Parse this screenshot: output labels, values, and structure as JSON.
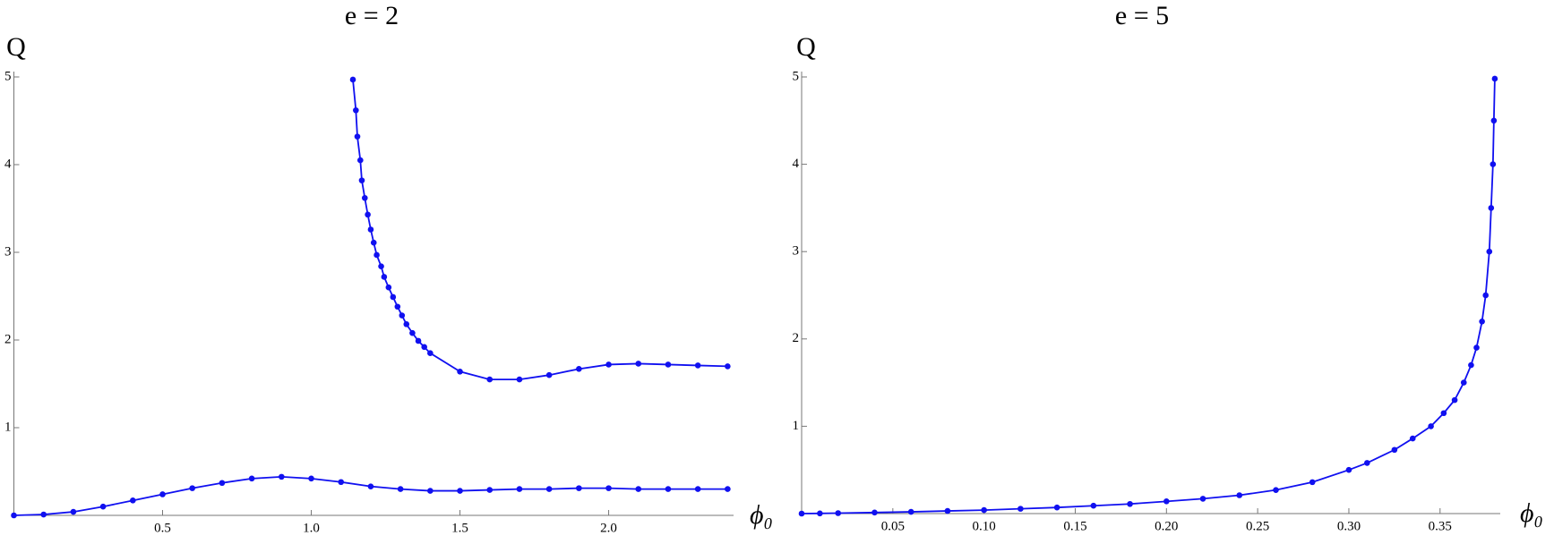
{
  "chart_data": [
    {
      "type": "line",
      "title": "e = 2",
      "ylabel": "Q",
      "xlabel": "ϕ₀",
      "xlim": [
        0,
        2.42
      ],
      "ylim": [
        0,
        5
      ],
      "xticks": [
        0.5,
        {
          "value": 1.0,
          "label": "1.0"
        },
        1.5,
        {
          "value": 2.0,
          "label": "2.0"
        }
      ],
      "yticks": [
        1,
        2,
        3,
        4,
        5
      ],
      "series": [
        {
          "color": "#1010f0",
          "x": [
            0,
            0.1,
            0.2,
            0.3,
            0.4,
            0.5,
            0.6,
            0.7,
            0.8,
            0.9,
            1.0,
            1.1,
            1.2,
            1.3,
            1.4,
            1.5,
            1.6,
            1.7,
            1.8,
            1.9,
            2.0,
            2.1,
            2.2,
            2.3,
            2.4
          ],
          "values": [
            0,
            0.01,
            0.04,
            0.1,
            0.17,
            0.24,
            0.31,
            0.37,
            0.42,
            0.44,
            0.42,
            0.38,
            0.33,
            0.3,
            0.28,
            0.28,
            0.29,
            0.3,
            0.3,
            0.31,
            0.31,
            0.3,
            0.3,
            0.3,
            0.3
          ]
        },
        {
          "color": "#1010f0",
          "x": [
            1.14,
            1.15,
            1.155,
            1.165,
            1.17,
            1.18,
            1.19,
            1.2,
            1.21,
            1.22,
            1.235,
            1.245,
            1.26,
            1.275,
            1.29,
            1.305,
            1.32,
            1.34,
            1.36,
            1.38,
            1.4,
            1.5,
            1.6,
            1.7,
            1.8,
            1.9,
            2.0,
            2.1,
            2.2,
            2.3,
            2.4
          ],
          "values": [
            4.97,
            4.62,
            4.32,
            4.05,
            3.82,
            3.62,
            3.43,
            3.26,
            3.11,
            2.97,
            2.84,
            2.72,
            2.6,
            2.49,
            2.38,
            2.28,
            2.18,
            2.08,
            1.99,
            1.92,
            1.85,
            1.64,
            1.55,
            1.55,
            1.6,
            1.67,
            1.72,
            1.73,
            1.72,
            1.71,
            1.7
          ]
        }
      ]
    },
    {
      "type": "line",
      "title": "e = 5",
      "ylabel": "Q",
      "xlabel": "ϕ₀",
      "xlim": [
        0,
        0.383
      ],
      "ylim": [
        0,
        5
      ],
      "xticks": [
        0.05,
        {
          "value": 0.1,
          "label": "0.10"
        },
        0.15,
        {
          "value": 0.2,
          "label": "0.20"
        },
        0.25,
        {
          "value": 0.3,
          "label": "0.30"
        },
        0.35
      ],
      "yticks": [
        1,
        2,
        3,
        4,
        5
      ],
      "series": [
        {
          "color": "#1010f0",
          "x": [
            0,
            0.01,
            0.02,
            0.04,
            0.06,
            0.08,
            0.1,
            0.12,
            0.14,
            0.16,
            0.18,
            0.2,
            0.22,
            0.24,
            0.26,
            0.28,
            0.3,
            0.31,
            0.325,
            0.335,
            0.345,
            0.352,
            0.358,
            0.363,
            0.367,
            0.37,
            0.373,
            0.375,
            0.377,
            0.378,
            0.379,
            0.3795,
            0.38
          ],
          "values": [
            0,
            0.002,
            0.005,
            0.012,
            0.02,
            0.03,
            0.04,
            0.055,
            0.07,
            0.09,
            0.11,
            0.14,
            0.17,
            0.21,
            0.27,
            0.36,
            0.5,
            0.58,
            0.73,
            0.86,
            1.0,
            1.15,
            1.3,
            1.5,
            1.7,
            1.9,
            2.2,
            2.5,
            3.0,
            3.5,
            4.0,
            4.5,
            4.98
          ]
        }
      ]
    }
  ]
}
